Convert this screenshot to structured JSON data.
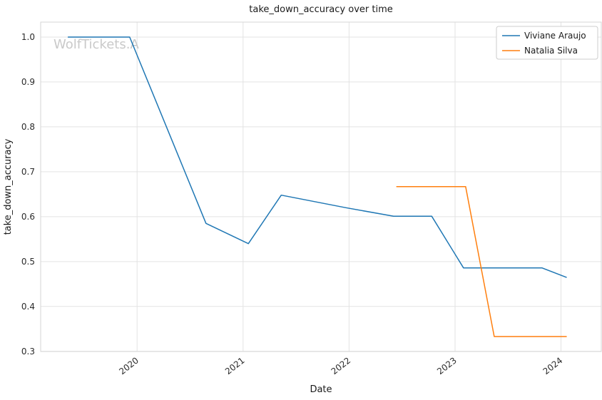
{
  "chart_data": {
    "type": "line",
    "title": "take_down_accuracy over time",
    "xlabel": "Date",
    "ylabel": "take_down_accuracy",
    "watermark": "WolfTickets.A",
    "grid": true,
    "legend_position": "upper right",
    "xlim": [
      2019.09,
      2024.38
    ],
    "ylim": [
      0.2997,
      1.0333
    ],
    "xticks": {
      "values": [
        2020,
        2021,
        2022,
        2023,
        2024
      ],
      "labels": [
        "2020",
        "2021",
        "2022",
        "2023",
        "2024"
      ]
    },
    "yticks": {
      "values": [
        0.3,
        0.4,
        0.5,
        0.6,
        0.7,
        0.8,
        0.9,
        1.0
      ],
      "labels": [
        "0.3",
        "0.4",
        "0.5",
        "0.6",
        "0.7",
        "0.8",
        "0.9",
        "1.0"
      ]
    },
    "series": [
      {
        "name": "Viviane Araujo",
        "color": "#1f77b4",
        "x": [
          2019.35,
          2019.93,
          2020.65,
          2021.05,
          2021.36,
          2021.97,
          2022.42,
          2022.78,
          2023.08,
          2023.82,
          2024.05
        ],
        "y": [
          1.0,
          1.0,
          0.585,
          0.54,
          0.648,
          0.62,
          0.601,
          0.601,
          0.486,
          0.486,
          0.465
        ]
      },
      {
        "name": "Natalia Silva",
        "color": "#ff7f0e",
        "x": [
          2022.45,
          2023.1,
          2023.37,
          2024.05
        ],
        "y": [
          0.667,
          0.667,
          0.333,
          0.333
        ]
      }
    ]
  }
}
